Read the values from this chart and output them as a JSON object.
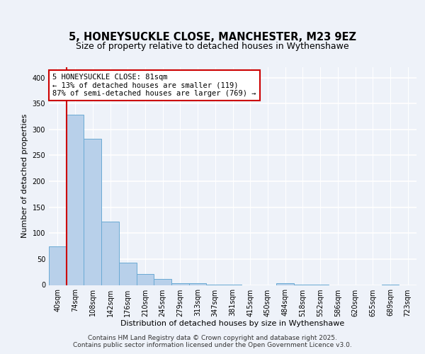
{
  "title1": "5, HONEYSUCKLE CLOSE, MANCHESTER, M23 9EZ",
  "title2": "Size of property relative to detached houses in Wythenshawe",
  "xlabel": "Distribution of detached houses by size in Wythenshawe",
  "ylabel": "Number of detached properties",
  "bins": [
    "40sqm",
    "74sqm",
    "108sqm",
    "142sqm",
    "176sqm",
    "210sqm",
    "245sqm",
    "279sqm",
    "313sqm",
    "347sqm",
    "381sqm",
    "415sqm",
    "450sqm",
    "484sqm",
    "518sqm",
    "552sqm",
    "586sqm",
    "620sqm",
    "655sqm",
    "689sqm",
    "723sqm"
  ],
  "values": [
    75,
    328,
    282,
    122,
    43,
    21,
    12,
    4,
    3,
    1,
    1,
    0,
    0,
    4,
    1,
    1,
    0,
    0,
    0,
    1,
    0
  ],
  "bar_color": "#b8d0ea",
  "bar_edge_color": "#6aaad4",
  "vline_color": "#cc0000",
  "annotation_text": "5 HONEYSUCKLE CLOSE: 81sqm\n← 13% of detached houses are smaller (119)\n87% of semi-detached houses are larger (769) →",
  "annotation_box_color": "#ffffff",
  "annotation_box_edge_color": "#cc0000",
  "ylim": [
    0,
    420
  ],
  "yticks": [
    0,
    50,
    100,
    150,
    200,
    250,
    300,
    350,
    400
  ],
  "footer_text": "Contains HM Land Registry data © Crown copyright and database right 2025.\nContains public sector information licensed under the Open Government Licence v3.0.",
  "bg_color": "#eef2f9",
  "grid_color": "#ffffff",
  "title1_fontsize": 10.5,
  "title2_fontsize": 9,
  "axis_fontsize": 8,
  "tick_fontsize": 7,
  "annotation_fontsize": 7.5,
  "footer_fontsize": 6.5
}
